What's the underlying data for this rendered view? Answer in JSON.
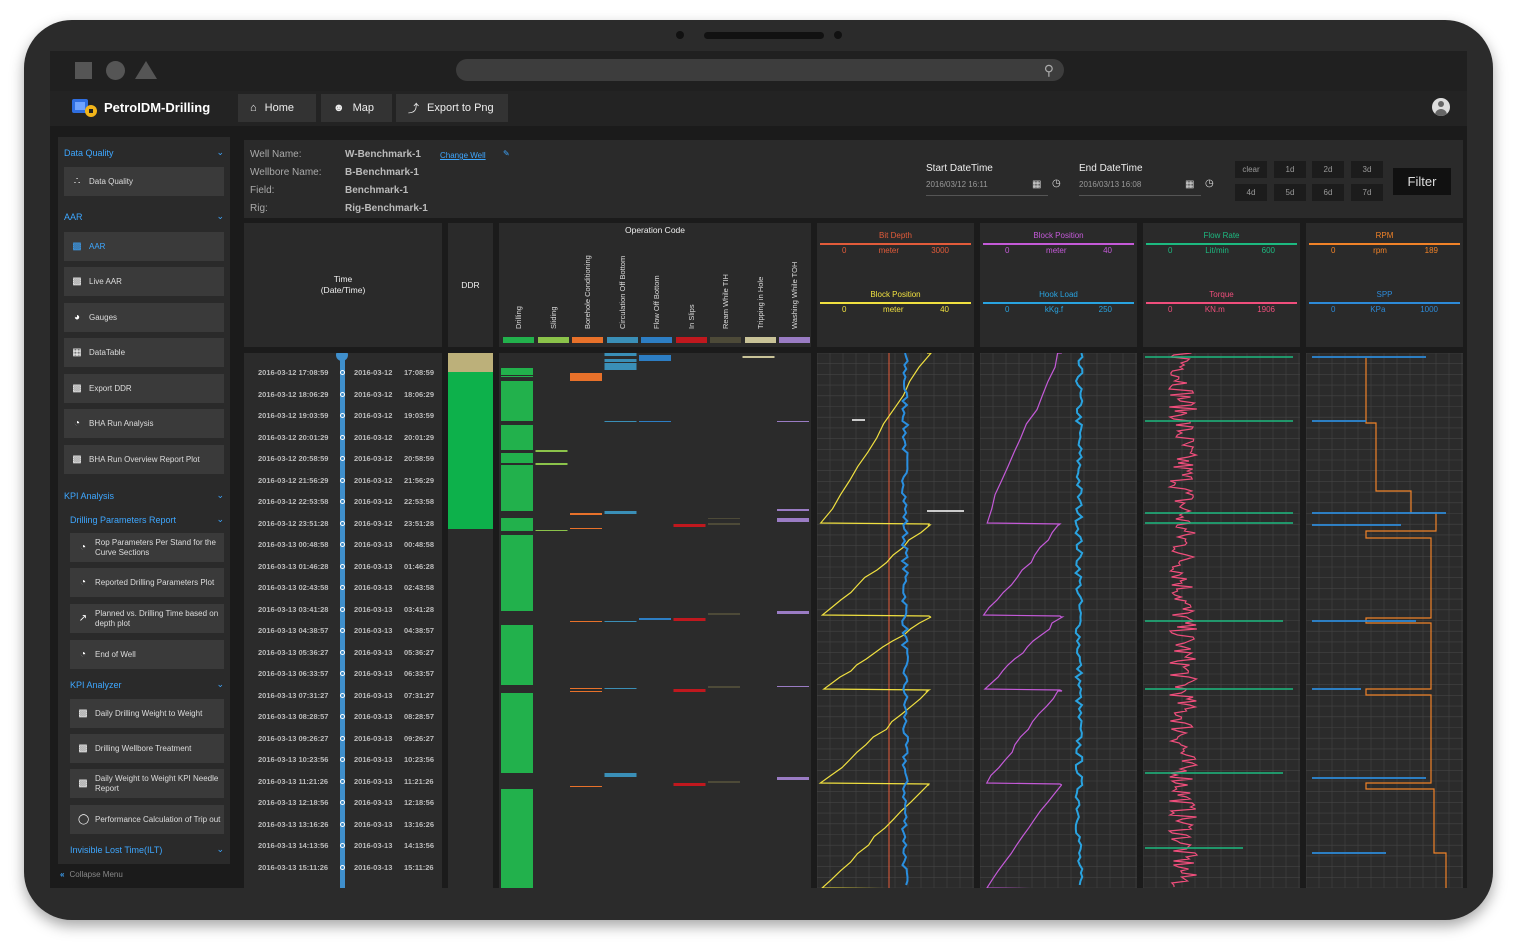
{
  "app": {
    "title": "PetroIDM-Drilling"
  },
  "nav": [
    {
      "label": "Home",
      "icon": "home-icon"
    },
    {
      "label": "Map",
      "icon": "user-icon"
    },
    {
      "label": "Export to Png",
      "icon": "export-icon"
    }
  ],
  "sidebar": {
    "data_quality": {
      "title": "Data Quality",
      "items": [
        "Data Quality"
      ]
    },
    "aar": {
      "title": "AAR",
      "items": [
        "AAR",
        "Live AAR",
        "Gauges",
        "DataTable",
        "Export DDR",
        "BHA Run Analysis",
        "BHA Run Overview Report Plot"
      ]
    },
    "kpi": {
      "title": "KPI Analysis"
    },
    "drilling_params": {
      "title": "Drilling Parameters Report",
      "items": [
        "Rop Parameters Per Stand for the Curve Sections",
        "Reported Drilling Parameters Plot",
        "Planned vs. Drilling Time based on depth plot",
        "End of Well"
      ]
    },
    "kpi_analyzer": {
      "title": "KPI Analyzer",
      "items": [
        "Daily Drilling Weight to Weight",
        "Drilling Wellbore Treatment",
        "Daily Weight to Weight KPI Needle Report",
        "Performance Calculation of Trip out"
      ]
    },
    "ilt": {
      "title": "Invisible Lost Time(ILT)"
    },
    "collapse": "Collapse Menu"
  },
  "info": {
    "well_name_label": "Well Name:",
    "well_name": "W-Benchmark-1",
    "change_well": "Change Well",
    "wellbore_label": "Wellbore Name:",
    "wellbore": "B-Benchmark-1",
    "field_label": "Field:",
    "field": "Benchmark-1",
    "rig_label": "Rig:",
    "rig": "Rig-Benchmark-1",
    "start_label": "Start DateTime",
    "start_value": "2016/03/12 16:11",
    "end_label": "End DateTime",
    "end_value": "2016/03/13 16:08",
    "quick_buttons": [
      "clear",
      "1d",
      "2d",
      "3d",
      "4d",
      "5d",
      "6d",
      "7d"
    ],
    "filter": "Filter"
  },
  "time_header": {
    "line1": "Time",
    "line2": "(Date/Time)"
  },
  "ddr_header": "DDR",
  "operation": {
    "title": "Operation Code",
    "codes": [
      {
        "label": "Drilling",
        "color": "#22b14c"
      },
      {
        "label": "Sliding",
        "color": "#8bc34a"
      },
      {
        "label": "Borehole Conditioning",
        "color": "#e8712a"
      },
      {
        "label": "Circulation Off Bottom",
        "color": "#3a8fb7"
      },
      {
        "label": "Flow Off Bottom",
        "color": "#2d7ec4"
      },
      {
        "label": "In Slips",
        "color": "#c0181e"
      },
      {
        "label": "Ream While TIH",
        "color": "#4d4a38"
      },
      {
        "label": "Tripping in Hole",
        "color": "#c9c398"
      },
      {
        "label": "Washing While TOH",
        "color": "#9a7cc4"
      }
    ]
  },
  "tracks": [
    {
      "curves": [
        {
          "name": "Bit Depth",
          "unit": "meter",
          "min": "0",
          "max": "3000",
          "color": "#e25b3a"
        },
        {
          "name": "Block Position",
          "unit": "meter",
          "min": "0",
          "max": "40",
          "color": "#f0e040"
        }
      ]
    },
    {
      "curves": [
        {
          "name": "Block Position",
          "unit": "meter",
          "min": "0",
          "max": "40",
          "color": "#c45ad8"
        },
        {
          "name": "Hook Load",
          "unit": "kKg.f",
          "min": "0",
          "max": "250",
          "color": "#29a3e0"
        }
      ]
    },
    {
      "curves": [
        {
          "name": "Flow Rate",
          "unit": "Lit/min",
          "min": "0",
          "max": "600",
          "color": "#1db980"
        },
        {
          "name": "Torque",
          "unit": "KN.m",
          "min": "0",
          "max": "1906",
          "color": "#f04e7c"
        }
      ]
    },
    {
      "curves": [
        {
          "name": "RPM",
          "unit": "rpm",
          "min": "0",
          "max": "189",
          "color": "#f08228"
        },
        {
          "name": "SPP",
          "unit": "KPa",
          "min": "0",
          "max": "1000",
          "color": "#2d8ad8"
        }
      ]
    }
  ],
  "time_rows": [
    {
      "full": "2016-03-12 17:08:59",
      "date": "2016-03-12",
      "time": "17:08:59"
    },
    {
      "full": "2016-03-12 18:06:29",
      "date": "2016-03-12",
      "time": "18:06:29"
    },
    {
      "full": "2016-03-12 19:03:59",
      "date": "2016-03-12",
      "time": "19:03:59"
    },
    {
      "full": "2016-03-12 20:01:29",
      "date": "2016-03-12",
      "time": "20:01:29"
    },
    {
      "full": "2016-03-12 20:58:59",
      "date": "2016-03-12",
      "time": "20:58:59"
    },
    {
      "full": "2016-03-12 21:56:29",
      "date": "2016-03-12",
      "time": "21:56:29"
    },
    {
      "full": "2016-03-12 22:53:58",
      "date": "2016-03-12",
      "time": "22:53:58"
    },
    {
      "full": "2016-03-12 23:51:28",
      "date": "2016-03-12",
      "time": "23:51:28"
    },
    {
      "full": "2016-03-13 00:48:58",
      "date": "2016-03-13",
      "time": "00:48:58"
    },
    {
      "full": "2016-03-13 01:46:28",
      "date": "2016-03-13",
      "time": "01:46:28"
    },
    {
      "full": "2016-03-13 02:43:58",
      "date": "2016-03-13",
      "time": "02:43:58"
    },
    {
      "full": "2016-03-13 03:41:28",
      "date": "2016-03-13",
      "time": "03:41:28"
    },
    {
      "full": "2016-03-13 04:38:57",
      "date": "2016-03-13",
      "time": "04:38:57"
    },
    {
      "full": "2016-03-13 05:36:27",
      "date": "2016-03-13",
      "time": "05:36:27"
    },
    {
      "full": "2016-03-13 06:33:57",
      "date": "2016-03-13",
      "time": "06:33:57"
    },
    {
      "full": "2016-03-13 07:31:27",
      "date": "2016-03-13",
      "time": "07:31:27"
    },
    {
      "full": "2016-03-13 08:28:57",
      "date": "2016-03-13",
      "time": "08:28:57"
    },
    {
      "full": "2016-03-13 09:26:27",
      "date": "2016-03-13",
      "time": "09:26:27"
    },
    {
      "full": "2016-03-13 10:23:56",
      "date": "2016-03-13",
      "time": "10:23:56"
    },
    {
      "full": "2016-03-13 11:21:26",
      "date": "2016-03-13",
      "time": "11:21:26"
    },
    {
      "full": "2016-03-13 12:18:56",
      "date": "2016-03-13",
      "time": "12:18:56"
    },
    {
      "full": "2016-03-13 13:16:26",
      "date": "2016-03-13",
      "time": "13:16:26"
    },
    {
      "full": "2016-03-13 14:13:56",
      "date": "2016-03-13",
      "time": "14:13:56"
    },
    {
      "full": "2016-03-13 15:11:26",
      "date": "2016-03-13",
      "time": "15:11:26"
    }
  ],
  "colors": {
    "accent": "#3ea7ff",
    "background": "#1b1b1b",
    "panel": "#2a2a2a"
  }
}
